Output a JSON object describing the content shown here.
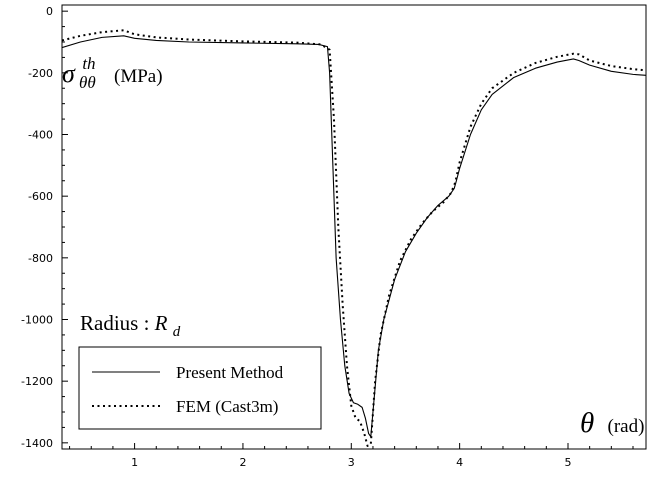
{
  "chart_data": {
    "type": "line",
    "title": "",
    "ylabel_symbol": "σ",
    "ylabel_superscript": "th",
    "ylabel_subscript": "θθ",
    "ylabel_unit": "(MPa)",
    "xlabel_symbol": "θ",
    "xlabel_unit": "(rad)",
    "annotation_prefix": "Radius : ",
    "annotation_symbol": "R",
    "annotation_subscript": "d",
    "xlim": [
      0.33,
      5.72
    ],
    "ylim": [
      -1420,
      20
    ],
    "x_ticks": [
      1,
      2,
      3,
      4,
      5
    ],
    "x_tick_labels": [
      "1",
      "2",
      "3",
      "4",
      "5"
    ],
    "y_ticks": [
      0,
      -200,
      -400,
      -600,
      -800,
      -1000,
      -1200,
      -1400
    ],
    "y_tick_labels": [
      "0",
      "-200",
      "-400",
      "-600",
      "-800",
      "-1000",
      "-1200",
      "-1400"
    ],
    "grid": false,
    "legend_position": "bottom-left",
    "series": [
      {
        "name": "Present Method",
        "style": "solid",
        "x": [
          0.33,
          0.5,
          0.7,
          0.9,
          1.0,
          1.2,
          1.5,
          2.0,
          2.5,
          2.7,
          2.78,
          2.8,
          2.83,
          2.86,
          2.9,
          2.94,
          2.98,
          3.02,
          3.06,
          3.1,
          3.13,
          3.16,
          3.18,
          3.2,
          3.25,
          3.3,
          3.4,
          3.5,
          3.6,
          3.7,
          3.8,
          3.9,
          3.95,
          3.97,
          4.0,
          4.1,
          4.2,
          4.3,
          4.5,
          4.7,
          4.9,
          5.05,
          5.1,
          5.2,
          5.4,
          5.6,
          5.72
        ],
        "y": [
          -118,
          -100,
          -85,
          -80,
          -88,
          -95,
          -100,
          -103,
          -106,
          -108,
          -115,
          -200,
          -500,
          -800,
          -1000,
          -1150,
          -1240,
          -1270,
          -1275,
          -1285,
          -1320,
          -1370,
          -1380,
          -1300,
          -1100,
          -1000,
          -870,
          -780,
          -720,
          -670,
          -630,
          -600,
          -575,
          -550,
          -510,
          -400,
          -320,
          -270,
          -215,
          -185,
          -165,
          -155,
          -160,
          -175,
          -195,
          -205,
          -208
        ]
      },
      {
        "name": "FEM (Cast3m)",
        "style": "dotted",
        "x": [
          0.33,
          0.5,
          0.7,
          0.9,
          1.0,
          1.2,
          1.5,
          2.0,
          2.5,
          2.72,
          2.8,
          2.84,
          2.88,
          2.92,
          2.96,
          3.0,
          3.04,
          3.08,
          3.12,
          3.15,
          3.18,
          3.22,
          3.27,
          3.35,
          3.45,
          3.55,
          3.65,
          3.75,
          3.85,
          3.92,
          3.96,
          4.0,
          4.1,
          4.2,
          4.3,
          4.5,
          4.7,
          4.9,
          5.05,
          5.1,
          5.2,
          5.4,
          5.6,
          5.72
        ],
        "y": [
          -95,
          -80,
          -68,
          -62,
          -75,
          -85,
          -92,
          -98,
          -102,
          -108,
          -125,
          -350,
          -700,
          -950,
          -1150,
          -1280,
          -1320,
          -1330,
          -1370,
          -1410,
          -1405,
          -1200,
          -1050,
          -920,
          -810,
          -740,
          -690,
          -650,
          -620,
          -590,
          -555,
          -490,
          -375,
          -300,
          -250,
          -200,
          -168,
          -148,
          -138,
          -140,
          -160,
          -178,
          -188,
          -192
        ]
      }
    ]
  }
}
